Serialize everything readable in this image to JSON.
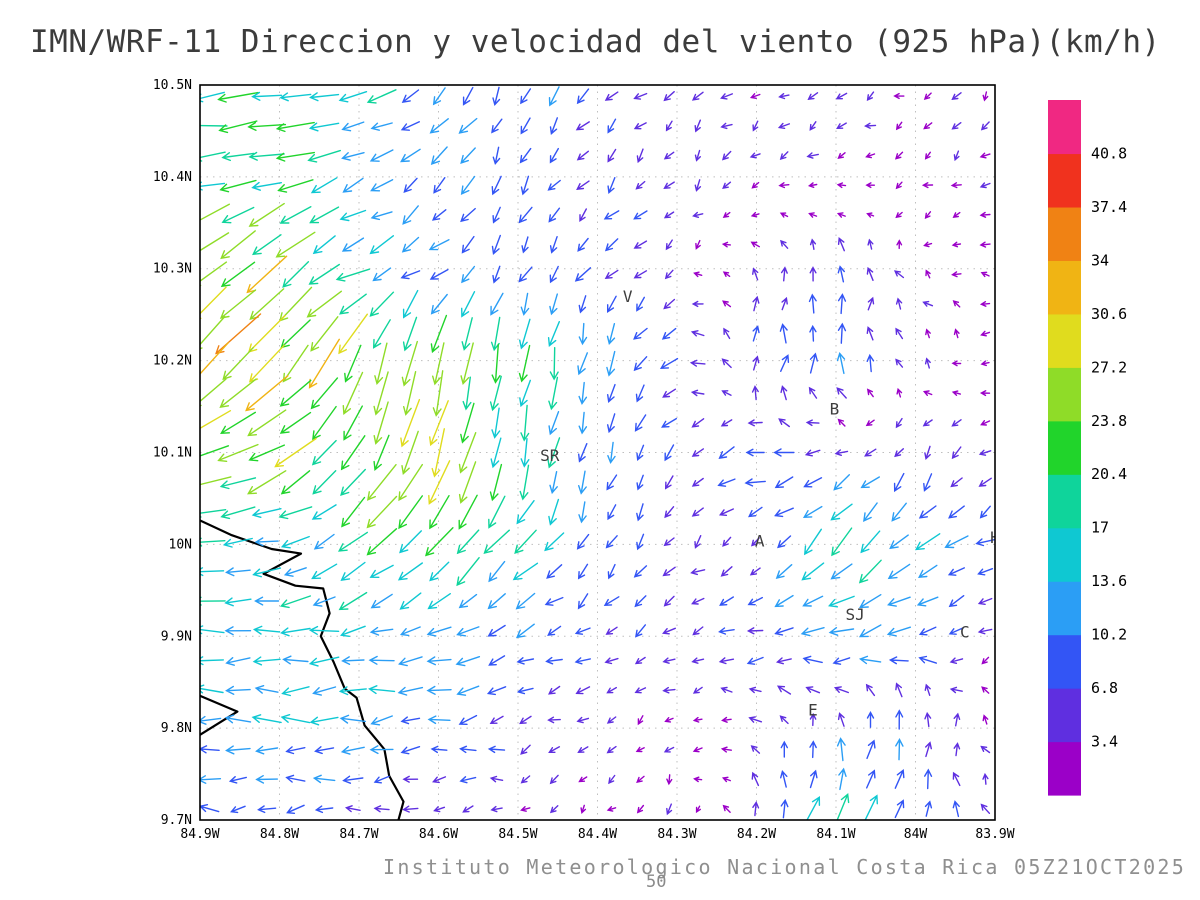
{
  "chart_data": {
    "type": "quiver",
    "title": "IMN/WRF-11 Direccion y velocidad del viento (925 hPa)(km/h)",
    "footer": "Instituto Meteorologico Nacional Costa Rica 05Z21OCT2025",
    "reference_vector": "50",
    "units": "km/h",
    "lon_range": [
      -84.9,
      -83.9
    ],
    "lat_range": [
      9.7,
      10.5
    ],
    "lon_ticks": [
      "84.9W",
      "84.8W",
      "84.7W",
      "84.6W",
      "84.5W",
      "84.4W",
      "84.3W",
      "84.2W",
      "84.1W",
      "84W",
      "83.9W"
    ],
    "lat_ticks": [
      "10.5N",
      "10.4N",
      "10.3N",
      "10.2N",
      "10.1N",
      "10N",
      "9.9N",
      "9.8N",
      "9.7N"
    ],
    "colorbar": {
      "levels": [
        3.4,
        6.8,
        10.2,
        13.6,
        17,
        20.4,
        23.8,
        27.2,
        30.6,
        34,
        37.4,
        40.8
      ],
      "colors": [
        "#9b00c8",
        "#5f2fe0",
        "#3355f5",
        "#2b9ef5",
        "#0fc8d2",
        "#0fd49b",
        "#21d42b",
        "#8fdc28",
        "#e0dc1e",
        "#f0b414",
        "#f08214",
        "#f0321e",
        "#f02882"
      ]
    },
    "stations": [
      {
        "label": "V",
        "lon": -84.362,
        "lat": 10.269
      },
      {
        "label": "B",
        "lon": -84.102,
        "lat": 10.147
      },
      {
        "label": "SR",
        "lon": -84.46,
        "lat": 10.096
      },
      {
        "label": "A",
        "lon": -84.196,
        "lat": 10.003
      },
      {
        "label": "SJ",
        "lon": -84.076,
        "lat": 9.923
      },
      {
        "label": "C",
        "lon": -83.938,
        "lat": 9.904
      },
      {
        "label": "E",
        "lon": -84.129,
        "lat": 9.819
      },
      {
        "label": "H",
        "lon": -83.9,
        "lat": 10.007
      }
    ],
    "coastline": [
      [
        [
          -84.905,
          10.028
        ],
        [
          -84.86,
          10.01
        ],
        [
          -84.81,
          9.995
        ],
        [
          -84.773,
          9.99
        ],
        [
          -84.82,
          9.968
        ],
        [
          -84.78,
          9.955
        ],
        [
          -84.745,
          9.952
        ],
        [
          -84.737,
          9.925
        ],
        [
          -84.748,
          9.9
        ],
        [
          -84.732,
          9.872
        ],
        [
          -84.718,
          9.843
        ],
        [
          -84.703,
          9.833
        ],
        [
          -84.693,
          9.803
        ],
        [
          -84.668,
          9.777
        ],
        [
          -84.662,
          9.748
        ],
        [
          -84.644,
          9.72
        ],
        [
          -84.652,
          9.695
        ]
      ],
      [
        [
          -84.905,
          9.837
        ],
        [
          -84.853,
          9.818
        ],
        [
          -84.905,
          9.79
        ]
      ]
    ],
    "wind_field": {
      "comment": "u,v components in km/h on a 0.1 deg grid; rows ordered north to south",
      "lats": [
        10.5,
        10.4,
        10.3,
        10.2,
        10.1,
        10.0,
        9.9,
        9.8,
        9.7
      ],
      "lons": [
        -84.9,
        -84.8,
        -84.7,
        -84.6,
        -84.5,
        -84.4,
        -84.3,
        -84.2,
        -84.1,
        -84.0,
        -83.9
      ],
      "uv_kmh": [
        [
          [
            -22,
            -2
          ],
          [
            -20,
            -3
          ],
          [
            -15,
            -5
          ],
          [
            -8,
            -8
          ],
          [
            -4,
            -9
          ],
          [
            -6,
            -6
          ],
          [
            -4,
            -3
          ],
          [
            -3,
            -2
          ],
          [
            -4,
            -1
          ],
          [
            -3,
            -2
          ],
          [
            -2,
            -3
          ]
        ],
        [
          [
            -20,
            -1
          ],
          [
            -18,
            -4
          ],
          [
            -12,
            -6
          ],
          [
            -6,
            -8
          ],
          [
            -3,
            -8
          ],
          [
            -5,
            -5
          ],
          [
            -3,
            -3
          ],
          [
            -2,
            -3
          ],
          [
            -3,
            -2
          ],
          [
            -2,
            -2
          ],
          [
            -3,
            -2
          ]
        ],
        [
          [
            -24,
            -20
          ],
          [
            -20,
            -18
          ],
          [
            -14,
            -5
          ],
          [
            -8,
            -6
          ],
          [
            -4,
            -8
          ],
          [
            -5,
            -6
          ],
          [
            -3,
            -3
          ],
          [
            -1,
            4
          ],
          [
            1,
            8
          ],
          [
            -2,
            2
          ],
          [
            -3,
            0
          ]
        ],
        [
          [
            -22,
            -22
          ],
          [
            -20,
            -22
          ],
          [
            -10,
            -26
          ],
          [
            -6,
            -24
          ],
          [
            -4,
            -20
          ],
          [
            -2,
            -12
          ],
          [
            -9,
            -2
          ],
          [
            2,
            8
          ],
          [
            1,
            10
          ],
          [
            -2,
            3
          ],
          [
            -2,
            1
          ]
        ],
        [
          [
            -26,
            -6
          ],
          [
            -22,
            -12
          ],
          [
            -12,
            -22
          ],
          [
            -8,
            -24
          ],
          [
            -4,
            -18
          ],
          [
            -3,
            -10
          ],
          [
            -3,
            -6
          ],
          [
            -10,
            -2
          ],
          [
            -6,
            -2
          ],
          [
            -3,
            -5
          ],
          [
            -4,
            -3
          ]
        ],
        [
          [
            -15,
            -2
          ],
          [
            -14,
            -3
          ],
          [
            -14,
            -12
          ],
          [
            -14,
            -16
          ],
          [
            -10,
            -12
          ],
          [
            -4,
            -8
          ],
          [
            -4,
            -4
          ],
          [
            -4,
            -3
          ],
          [
            -12,
            -14
          ],
          [
            -10,
            -10
          ],
          [
            -8,
            -4
          ]
        ],
        [
          [
            -14,
            0
          ],
          [
            -14,
            -1
          ],
          [
            -13,
            -2
          ],
          [
            -12,
            -3
          ],
          [
            -10,
            -4
          ],
          [
            -6,
            -3
          ],
          [
            -5,
            -2
          ],
          [
            -8,
            -2
          ],
          [
            -12,
            -4
          ],
          [
            -12,
            -2
          ],
          [
            -3,
            -2
          ]
        ],
        [
          [
            -13,
            1
          ],
          [
            -13,
            0
          ],
          [
            -12,
            -1
          ],
          [
            -10,
            -2
          ],
          [
            -6,
            -2
          ],
          [
            -3,
            -2
          ],
          [
            -2,
            -2
          ],
          [
            -4,
            2
          ],
          [
            0,
            8
          ],
          [
            2,
            9
          ],
          [
            -3,
            2
          ]
        ],
        [
          [
            -8,
            0
          ],
          [
            -7,
            -1
          ],
          [
            -6,
            -1
          ],
          [
            -4,
            -1
          ],
          [
            -3,
            -1
          ],
          [
            -2,
            -2
          ],
          [
            -2,
            -4
          ],
          [
            1,
            8
          ],
          [
            6,
            16
          ],
          [
            2,
            10
          ],
          [
            -2,
            3
          ]
        ]
      ]
    }
  }
}
